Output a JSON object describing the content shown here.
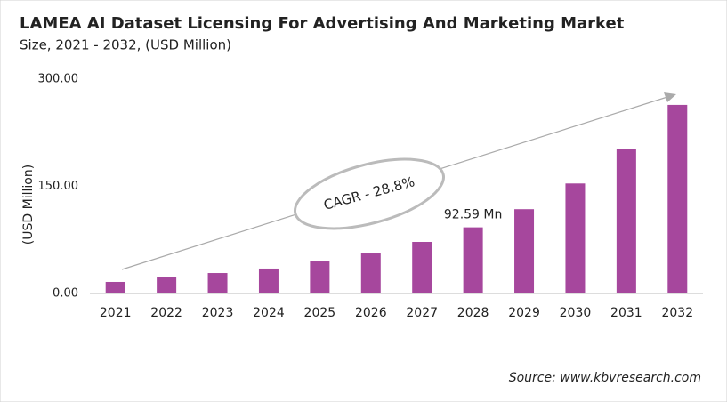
{
  "chart_data": {
    "type": "bar",
    "title": "LAMEA AI Dataset Licensing For Advertising And Marketing Market",
    "subtitle": "Size, 2021 - 2032, (USD Million)",
    "y_label": "(USD Million)",
    "annotation": "CAGR - 28.8%",
    "source": "Source: www.kbvresearch.com",
    "categories": [
      "2021",
      "2022",
      "2023",
      "2024",
      "2025",
      "2026",
      "2027",
      "2028",
      "2029",
      "2030",
      "2031",
      "2032"
    ],
    "values": [
      16.2,
      22.4,
      28.6,
      34.9,
      44.8,
      56,
      72.2,
      92.59,
      118,
      154,
      201.7,
      264
    ],
    "value_labels": [
      null,
      null,
      null,
      null,
      null,
      null,
      null,
      "92.59 Mn",
      null,
      null,
      null,
      null
    ],
    "color": "#a6479d",
    "ylim": [
      0,
      300
    ],
    "yticks": [
      {
        "value": 0,
        "label": "0.00"
      },
      {
        "value": 150,
        "label": "150.00"
      },
      {
        "value": 300,
        "label": "300.00"
      }
    ],
    "grid": false
  }
}
